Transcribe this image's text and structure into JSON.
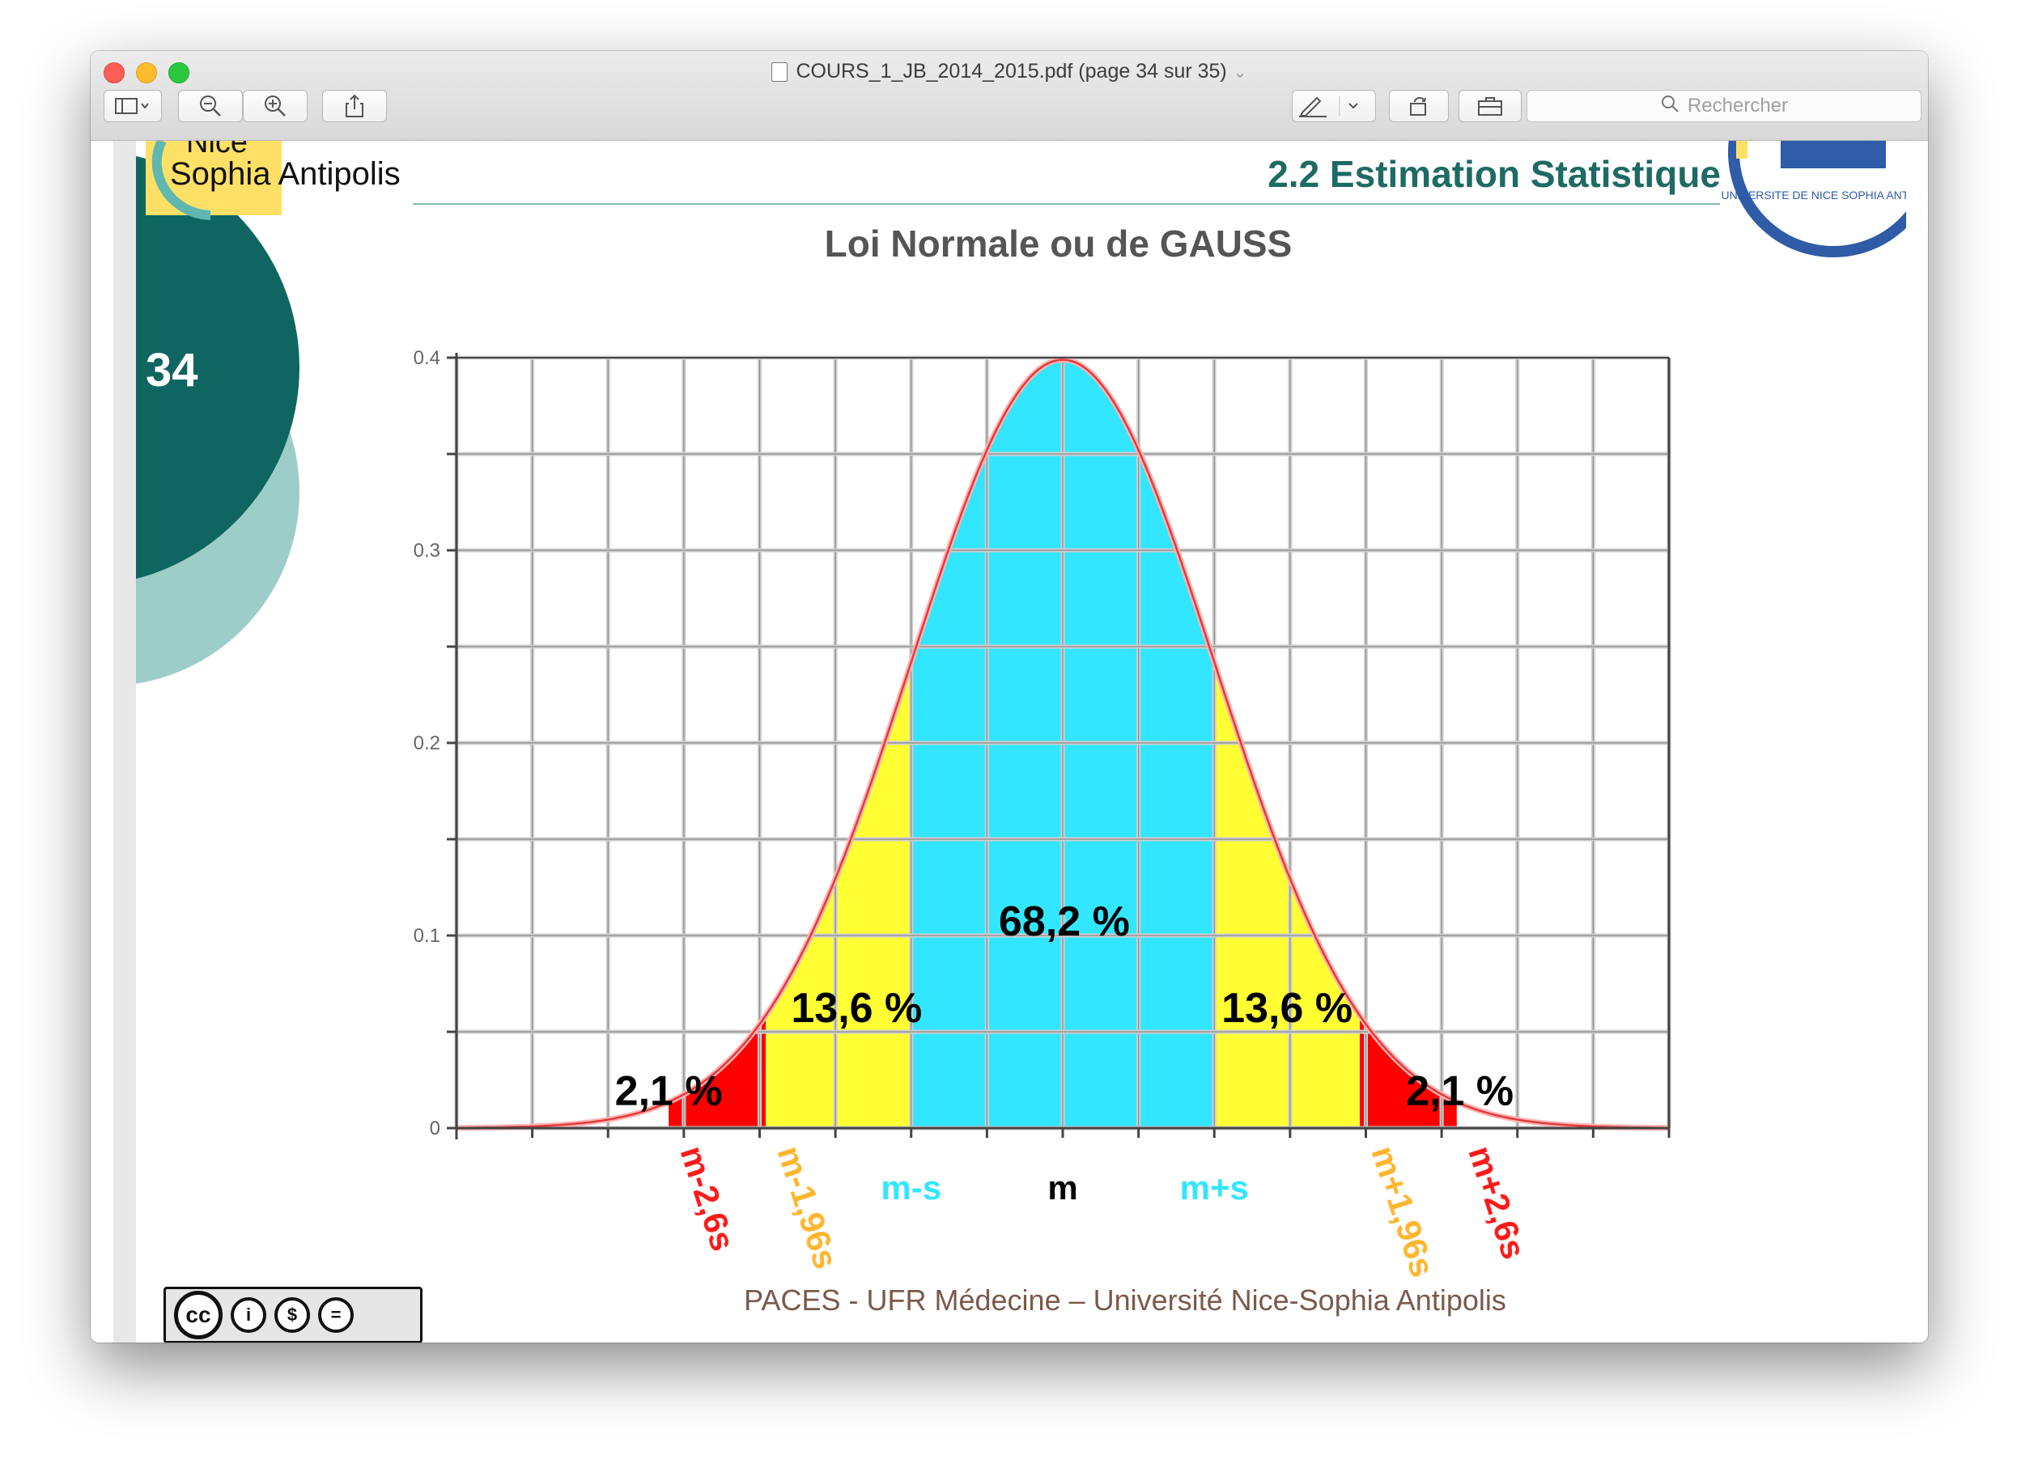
{
  "window": {
    "title": "COURS_1_JB_2014_2015.pdf (page 34 sur 35)",
    "search_placeholder": "Rechercher"
  },
  "toolbar": {
    "icons": [
      "sidebar-icon",
      "chevron-down-icon",
      "zoom-out-icon",
      "zoom-in-icon",
      "share-icon",
      "pen-icon",
      "chevron-down-icon",
      "rotate-icon",
      "toolbox-icon",
      "search-icon"
    ]
  },
  "slide": {
    "number": "34",
    "logo_line1": "Nice",
    "logo_line2": "Sophia Antipolis",
    "seal_text": "UNIVERSITE DE NICE SOPHIA ANTIPOLIS",
    "section_title": "2.2 Estimation Statistique",
    "chart_title": "Loi Normale ou de GAUSS",
    "footer": "PACES - UFR Médecine – Université Nice-Sophia Antipolis",
    "license_label": "cc"
  },
  "chart_data": {
    "type": "area",
    "title": "Loi Normale ou de GAUSS",
    "xlabel": "",
    "ylabel": "",
    "ylim": [
      0,
      0.4
    ],
    "xlim": [
      -4,
      4
    ],
    "yticks": [
      "0.4",
      "0.3",
      "0.2",
      "0.1",
      "0"
    ],
    "grid": true,
    "curve": {
      "name": "",
      "mean": 0,
      "sd": 1
    },
    "regions": [
      {
        "from": -2.6,
        "to": -1.96,
        "color": "#ff0000",
        "label": "2,1 %"
      },
      {
        "from": -1.96,
        "to": -1,
        "color": "#ffff33",
        "label": "13,6 %"
      },
      {
        "from": -1,
        "to": 1,
        "color": "#33e6ff",
        "label": "68,2 %"
      },
      {
        "from": 1,
        "to": 1.96,
        "color": "#ffff33",
        "label": "13,6 %"
      },
      {
        "from": 1.96,
        "to": 2.6,
        "color": "#ff0000",
        "label": "2,1 %"
      }
    ],
    "x_markers": [
      {
        "x": -2.6,
        "label": "m-2,6s",
        "color": "#ff1a1a",
        "rotated": true
      },
      {
        "x": -1.96,
        "label": "m-1,96s",
        "color": "#ffb62e",
        "rotated": true
      },
      {
        "x": -1,
        "label": "m-s",
        "color": "#33e6ff",
        "rotated": false
      },
      {
        "x": 0,
        "label": "m",
        "color": "#000000",
        "rotated": false
      },
      {
        "x": 1,
        "label": "m+s",
        "color": "#33e6ff",
        "rotated": false
      },
      {
        "x": 1.96,
        "label": "m+1,96s",
        "color": "#ffb62e",
        "rotated": true
      },
      {
        "x": 2.6,
        "label": "m+2,6s",
        "color": "#ff1a1a",
        "rotated": true
      }
    ]
  }
}
